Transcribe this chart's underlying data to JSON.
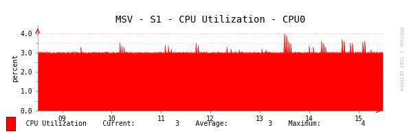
{
  "title": "MSV - S1 - CPU Utilization - CPU0",
  "ylabel": "percent",
  "xtick_labels": [
    "09",
    "10",
    "11",
    "12",
    "13",
    "14",
    "15"
  ],
  "xtick_positions": [
    60,
    180,
    300,
    420,
    540,
    660,
    780
  ],
  "ytick_labels": [
    "0.0",
    "1.0",
    "2.0",
    "3.0",
    "4.0"
  ],
  "ytick_positions": [
    0.0,
    1.0,
    2.0,
    3.0,
    4.0
  ],
  "ylim": [
    0.0,
    4.4
  ],
  "xlim": [
    0,
    840
  ],
  "fill_color": "#ff0000",
  "line_color": "#cc0000",
  "bg_color": "#ffffff",
  "plot_bg_color": "#ffffff",
  "grid_color": "#ffaaaa",
  "title_fontsize": 10,
  "axis_fontsize": 7,
  "legend_label": "CPU Utilization",
  "legend_current": "3",
  "legend_average": "3",
  "legend_maximum": "4",
  "watermark": "RRDTOOL / TOBI OETIKER",
  "n_points": 840,
  "base_value": 3.0
}
